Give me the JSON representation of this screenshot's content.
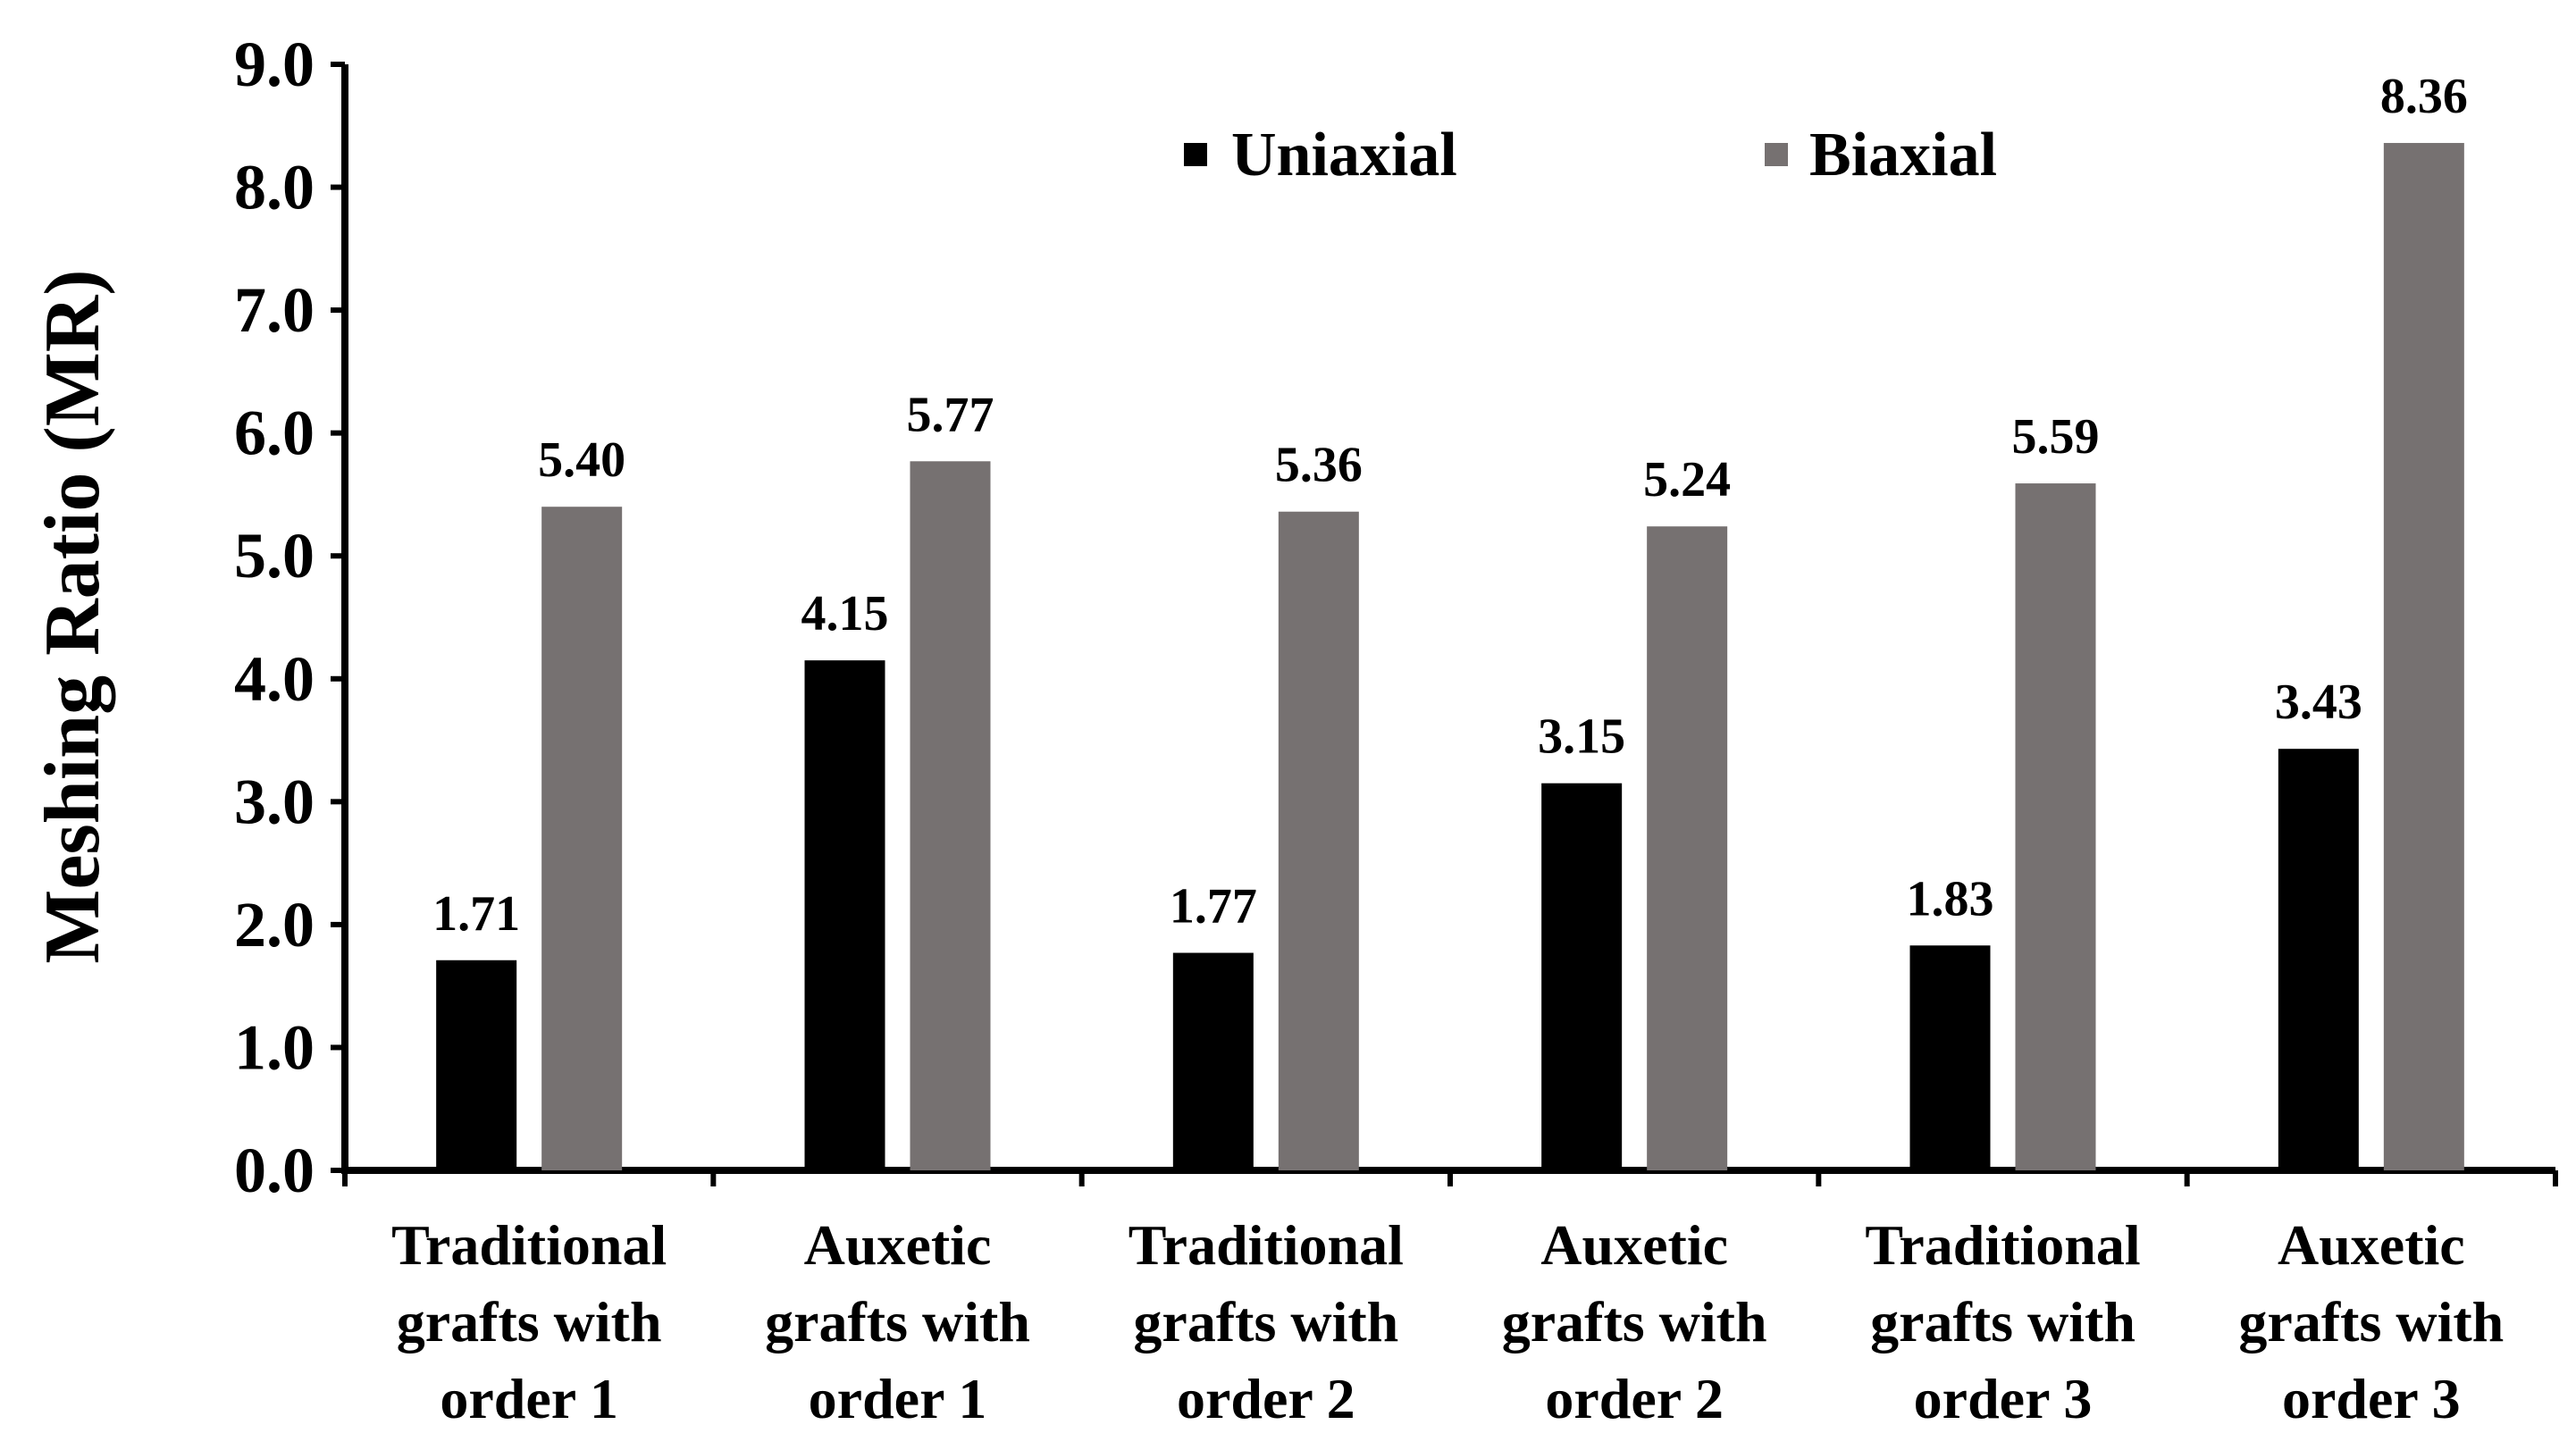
{
  "chart_data": {
    "type": "bar",
    "title": "",
    "xlabel": "",
    "ylabel": "Meshing Ratio (MR)",
    "ylim": [
      0,
      9
    ],
    "yticks": [
      "0.0",
      "1.0",
      "2.0",
      "3.0",
      "4.0",
      "5.0",
      "6.0",
      "7.0",
      "8.0",
      "9.0"
    ],
    "categories": [
      [
        "Traditional",
        "grafts with",
        "order 1"
      ],
      [
        "Auxetic",
        "grafts with",
        "order 1"
      ],
      [
        "Traditional",
        "grafts with",
        "order 2"
      ],
      [
        "Auxetic",
        "grafts with",
        "order 2"
      ],
      [
        "Traditional",
        "grafts with",
        "order 3"
      ],
      [
        "Auxetic",
        "grafts with",
        "order 3"
      ]
    ],
    "series": [
      {
        "name": "Uniaxial",
        "color": "#000000",
        "values": [
          1.71,
          4.15,
          1.77,
          3.15,
          1.83,
          3.43
        ],
        "labels": [
          "1.71",
          "4.15",
          "1.77",
          "3.15",
          "1.83",
          "3.43"
        ]
      },
      {
        "name": "Biaxial",
        "color": "#767171",
        "values": [
          5.4,
          5.77,
          5.36,
          5.24,
          5.59,
          8.36
        ],
        "labels": [
          "5.40",
          "5.77",
          "5.36",
          "5.24",
          "5.59",
          "8.36"
        ]
      }
    ],
    "legend_position": "top-center",
    "grid": false
  }
}
